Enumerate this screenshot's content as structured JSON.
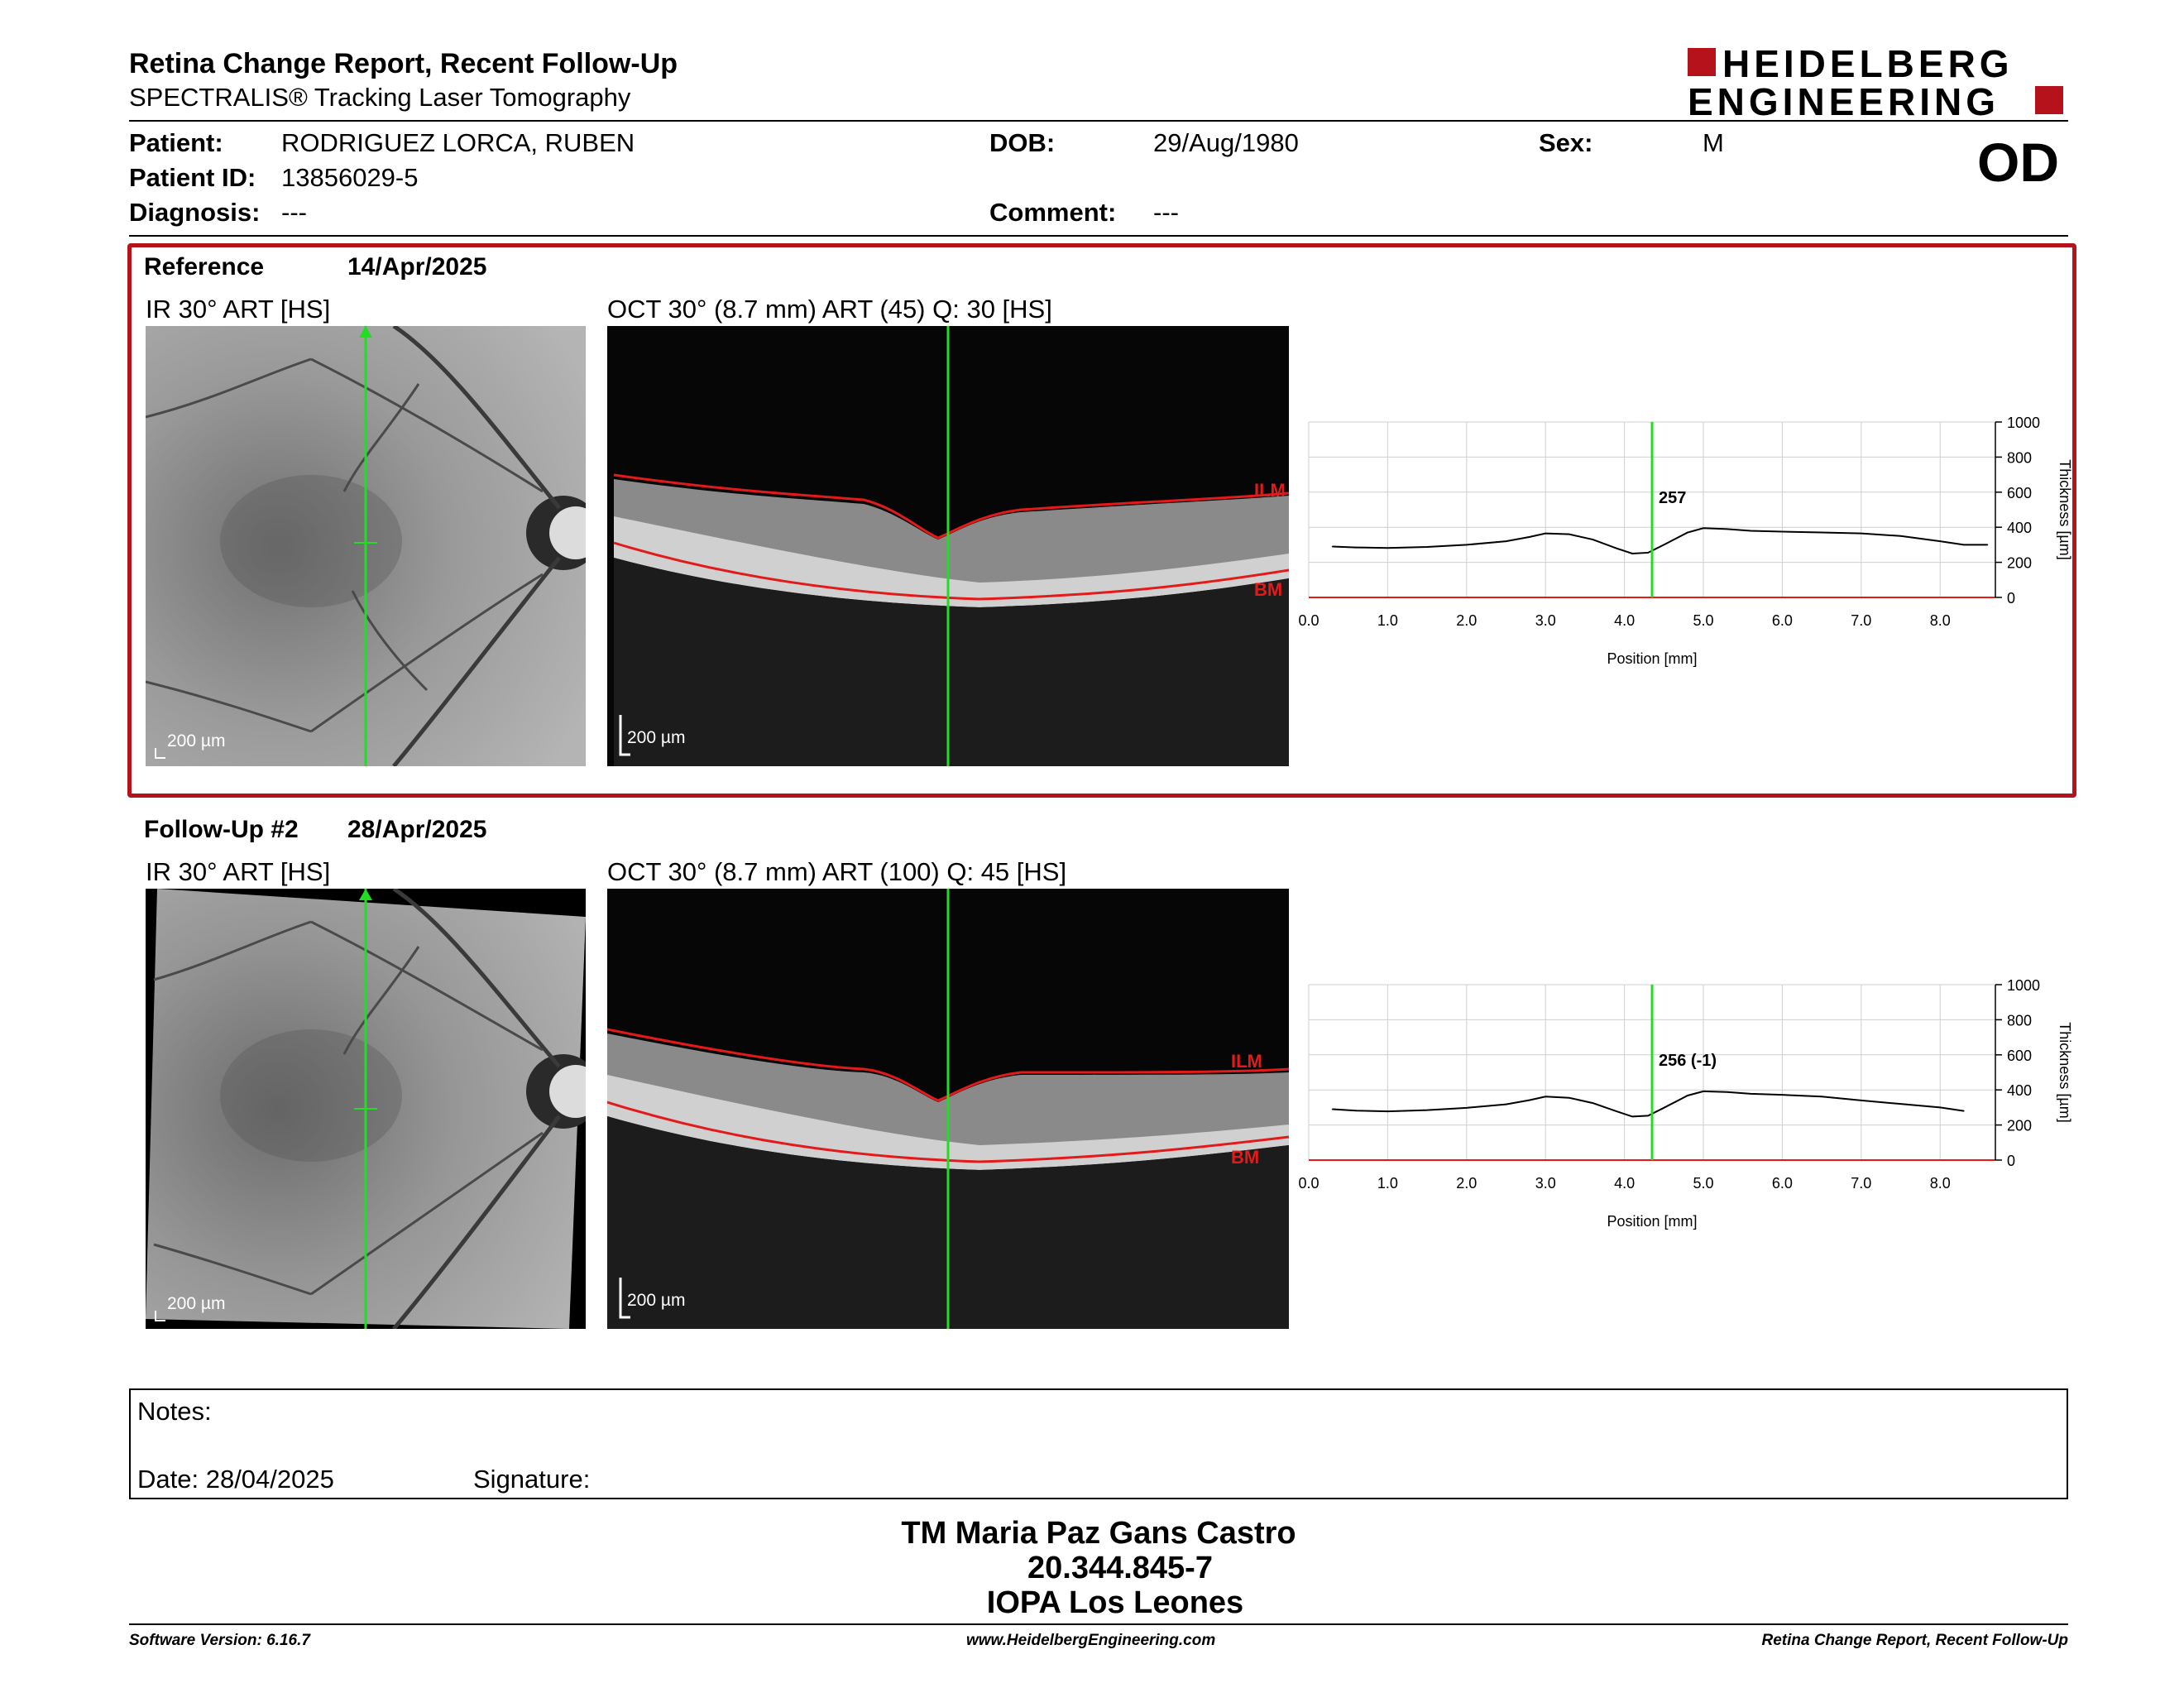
{
  "header": {
    "title": "Retina Change Report, Recent Follow-Up",
    "subtitle": "SPECTRALIS® Tracking Laser Tomography",
    "logo_line1": "HEIDELBERG",
    "logo_line2": "ENGINEERING",
    "eye": "OD"
  },
  "patient": {
    "patient_label": "Patient:",
    "patient_value": "RODRIGUEZ LORCA, RUBEN",
    "id_label": "Patient ID:",
    "id_value": "13856029-5",
    "diagnosis_label": "Diagnosis:",
    "diagnosis_value": "---",
    "dob_label": "DOB:",
    "dob_value": "29/Aug/1980",
    "comment_label": "Comment:",
    "comment_value": "---",
    "sex_label": "Sex:",
    "sex_value": "M"
  },
  "reference": {
    "label": "Reference",
    "date": "14/Apr/2025",
    "ir_label": "IR 30° ART [HS]",
    "oct_label": "OCT 30° (8.7 mm) ART (45) Q: 30 [HS]",
    "ir_scale": "200 µm",
    "oct_scale": "200 µm",
    "ilm": "ILM",
    "bm": "BM"
  },
  "followup": {
    "label": "Follow-Up #2",
    "date": "28/Apr/2025",
    "ir_label": "IR 30° ART [HS]",
    "oct_label": "OCT 30° (8.7 mm) ART (100) Q: 45 [HS]",
    "ir_scale": "200 µm",
    "oct_scale": "200 µm",
    "ilm": "ILM",
    "bm": "BM"
  },
  "chart_data": [
    {
      "type": "line",
      "xlabel": "Position [mm]",
      "ylabel": "Thickness [µm]",
      "xlim": [
        0,
        8.7
      ],
      "ylim": [
        0,
        1000
      ],
      "xticks": [
        "0.0",
        "1.0",
        "2.0",
        "3.0",
        "4.0",
        "5.0",
        "6.0",
        "7.0",
        "8.0"
      ],
      "yticks": [
        "0",
        "200",
        "400",
        "600",
        "800",
        "1000"
      ],
      "grid": true,
      "marker_x": 4.35,
      "marker_label": "257",
      "series": [
        {
          "x": [
            0.3,
            0.6,
            1.0,
            1.5,
            2.0,
            2.5,
            2.8,
            3.0,
            3.3,
            3.6,
            3.9,
            4.1,
            4.3,
            4.5,
            4.8,
            5.0,
            5.3,
            5.6,
            6.0,
            6.5,
            7.0,
            7.5,
            8.0,
            8.3,
            8.6
          ],
          "values": [
            290,
            285,
            282,
            288,
            300,
            320,
            345,
            365,
            360,
            330,
            280,
            250,
            255,
            300,
            370,
            395,
            390,
            380,
            375,
            370,
            365,
            350,
            320,
            300,
            300
          ]
        }
      ]
    },
    {
      "type": "line",
      "xlabel": "Position [mm]",
      "ylabel": "Thickness [µm]",
      "xlim": [
        0,
        8.7
      ],
      "ylim": [
        0,
        1000
      ],
      "xticks": [
        "0.0",
        "1.0",
        "2.0",
        "3.0",
        "4.0",
        "5.0",
        "6.0",
        "7.0",
        "8.0"
      ],
      "yticks": [
        "0",
        "200",
        "400",
        "600",
        "800",
        "1000"
      ],
      "grid": true,
      "marker_x": 4.35,
      "marker_label": "256 (-1)",
      "series": [
        {
          "x": [
            0.3,
            0.6,
            1.0,
            1.5,
            2.0,
            2.5,
            2.8,
            3.0,
            3.3,
            3.6,
            3.9,
            4.1,
            4.3,
            4.5,
            4.8,
            5.0,
            5.3,
            5.6,
            6.0,
            6.5,
            7.0,
            7.5,
            8.0,
            8.3
          ],
          "values": [
            290,
            282,
            278,
            285,
            298,
            318,
            342,
            362,
            355,
            325,
            278,
            248,
            253,
            298,
            368,
            392,
            388,
            378,
            372,
            362,
            340,
            320,
            300,
            280
          ]
        }
      ]
    }
  ],
  "notes": {
    "notes_label": "Notes:",
    "date_label": "Date: 28/04/2025",
    "signature_label": "Signature:"
  },
  "signatory": {
    "name": "TM Maria Paz Gans Castro",
    "rut": "20.344.845-7",
    "institution": "IOPA Los Leones"
  },
  "footer": {
    "left": "Software Version: 6.16.7",
    "center": "www.HeidelbergEngineering.com",
    "right": "Retina Change Report, Recent Follow-Up"
  },
  "colors": {
    "accent": "#b5121b",
    "scan_line": "#22dd22",
    "ilm_bm": "#e41a1a"
  }
}
